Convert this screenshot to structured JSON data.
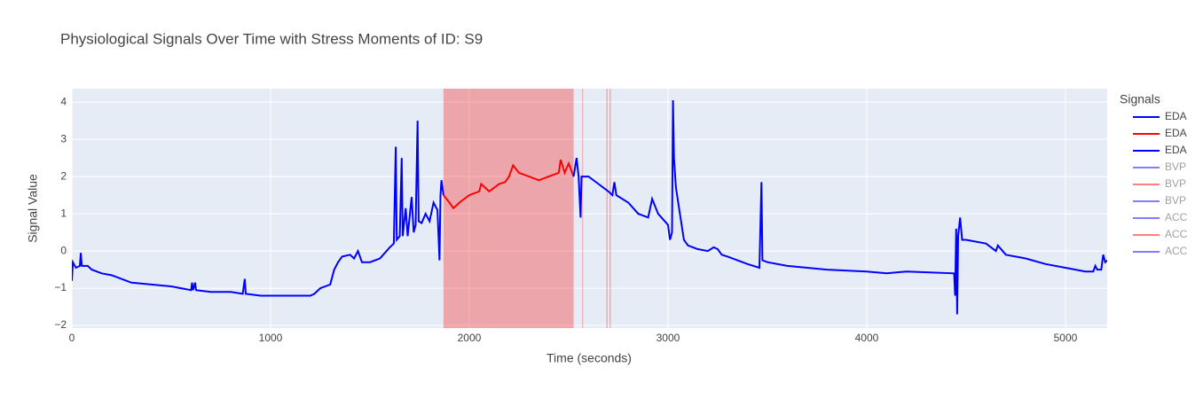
{
  "chart_data": {
    "type": "line",
    "title": "Physiological Signals Over Time with Stress Moments of ID: S9",
    "x_label": "Time (seconds)",
    "y_label": "Signal Value",
    "legend_title": "Signals",
    "legend_position": "right",
    "grid": true,
    "xlim": [
      0,
      5210
    ],
    "xticks": [
      0,
      1000,
      2000,
      3000,
      4000,
      5000
    ],
    "ylim": [
      -2.07,
      4.36
    ],
    "yticks": [
      {
        "value": -2,
        "label": "−2"
      },
      {
        "value": -1,
        "label": "−1"
      },
      0,
      1,
      2,
      3,
      4
    ],
    "stress_color": "#ff0000",
    "stress_periods": [
      [
        1870,
        2525
      ],
      [
        2568,
        2572
      ],
      [
        2690,
        2696
      ],
      [
        2706,
        2712
      ]
    ],
    "series": [
      {
        "name": "EDA",
        "color": "#0000ff",
        "visible": true,
        "x": [
          0,
          5,
          20,
          40,
          45,
          50,
          80,
          100,
          150,
          200,
          250,
          300,
          400,
          500,
          550,
          600,
          605,
          610,
          620,
          625,
          700,
          800,
          860,
          870,
          875,
          950,
          1000,
          1100,
          1200,
          1220,
          1250,
          1300,
          1320,
          1340,
          1360,
          1400,
          1420,
          1440,
          1460,
          1500,
          1550,
          1600,
          1620,
          1630,
          1635,
          1650,
          1660,
          1665,
          1680,
          1690,
          1710,
          1720,
          1730,
          1740,
          1745,
          1760,
          1780,
          1800,
          1820,
          1840,
          1850,
          1855,
          1860,
          1870
        ],
        "values": [
          -0.8,
          -0.3,
          -0.45,
          -0.4,
          -0.05,
          -0.4,
          -0.4,
          -0.5,
          -0.6,
          -0.65,
          -0.75,
          -0.85,
          -0.9,
          -0.95,
          -1.0,
          -1.05,
          -0.85,
          -1.05,
          -0.85,
          -1.05,
          -1.1,
          -1.1,
          -1.15,
          -0.75,
          -1.15,
          -1.2,
          -1.2,
          -1.2,
          -1.2,
          -1.15,
          -1.0,
          -0.9,
          -0.5,
          -0.3,
          -0.15,
          -0.1,
          -0.2,
          0.0,
          -0.3,
          -0.3,
          -0.2,
          0.1,
          0.2,
          2.8,
          0.3,
          0.4,
          2.5,
          0.4,
          1.15,
          0.4,
          1.45,
          0.5,
          0.7,
          3.5,
          0.8,
          0.75,
          1.0,
          0.8,
          1.3,
          1.1,
          -0.25,
          1.5,
          1.9,
          1.5
        ]
      },
      {
        "name": "EDA",
        "color": "#ff0000",
        "visible": true,
        "x": [
          1870,
          1900,
          1920,
          1950,
          2000,
          2050,
          2060,
          2100,
          2150,
          2180,
          2200,
          2220,
          2250,
          2300,
          2350,
          2400,
          2450,
          2460,
          2480,
          2500,
          2525
        ],
        "values": [
          1.5,
          1.3,
          1.15,
          1.3,
          1.5,
          1.6,
          1.8,
          1.6,
          1.8,
          1.85,
          2.0,
          2.3,
          2.1,
          2.0,
          1.9,
          2.0,
          2.1,
          2.45,
          2.1,
          2.35,
          2.0
        ]
      },
      {
        "name": "EDA",
        "color": "#0000ff",
        "visible": true,
        "x": [
          2525,
          2540,
          2550,
          2560,
          2565,
          2600,
          2650,
          2700,
          2720,
          2730,
          2740,
          2800,
          2850,
          2900,
          2920,
          2950,
          3000,
          3010,
          3020,
          3025,
          3030,
          3040,
          3060,
          3080,
          3100,
          3150,
          3200,
          3230,
          3250,
          3270,
          3300,
          3400,
          3460,
          3470,
          3475,
          3500,
          3600,
          3800,
          4000,
          4100,
          4200,
          4440,
          4445,
          4450,
          4455,
          4460,
          4470,
          4480,
          4500,
          4600,
          4650,
          4660,
          4700,
          4800,
          4900,
          5000,
          5100,
          5140,
          5150,
          5160,
          5180,
          5190,
          5200,
          5210
        ],
        "values": [
          2.0,
          2.5,
          2.0,
          0.9,
          2.0,
          2.0,
          1.8,
          1.6,
          1.5,
          1.85,
          1.5,
          1.3,
          1.0,
          0.9,
          1.4,
          1.0,
          0.7,
          0.3,
          0.5,
          4.05,
          2.5,
          1.7,
          1.0,
          0.3,
          0.15,
          0.05,
          0.0,
          0.1,
          0.05,
          -0.1,
          -0.15,
          -0.35,
          -0.45,
          1.85,
          -0.25,
          -0.3,
          -0.4,
          -0.5,
          -0.55,
          -0.6,
          -0.55,
          -0.6,
          -1.2,
          0.6,
          -1.7,
          0.4,
          0.9,
          0.3,
          0.3,
          0.2,
          0.0,
          0.15,
          -0.1,
          -0.2,
          -0.35,
          -0.45,
          -0.55,
          -0.55,
          -0.4,
          -0.5,
          -0.5,
          -0.1,
          -0.3,
          -0.25
        ]
      },
      {
        "name": "BVP",
        "color": "#0000ff",
        "visible": "legendonly"
      },
      {
        "name": "BVP",
        "color": "#ff0000",
        "visible": "legendonly"
      },
      {
        "name": "BVP",
        "color": "#0000ff",
        "visible": "legendonly"
      },
      {
        "name": "ACC",
        "color": "#0000ff",
        "visible": "legendonly"
      },
      {
        "name": "ACC",
        "color": "#ff0000",
        "visible": "legendonly"
      },
      {
        "name": "ACC",
        "color": "#0000ff",
        "visible": "legendonly"
      }
    ]
  }
}
